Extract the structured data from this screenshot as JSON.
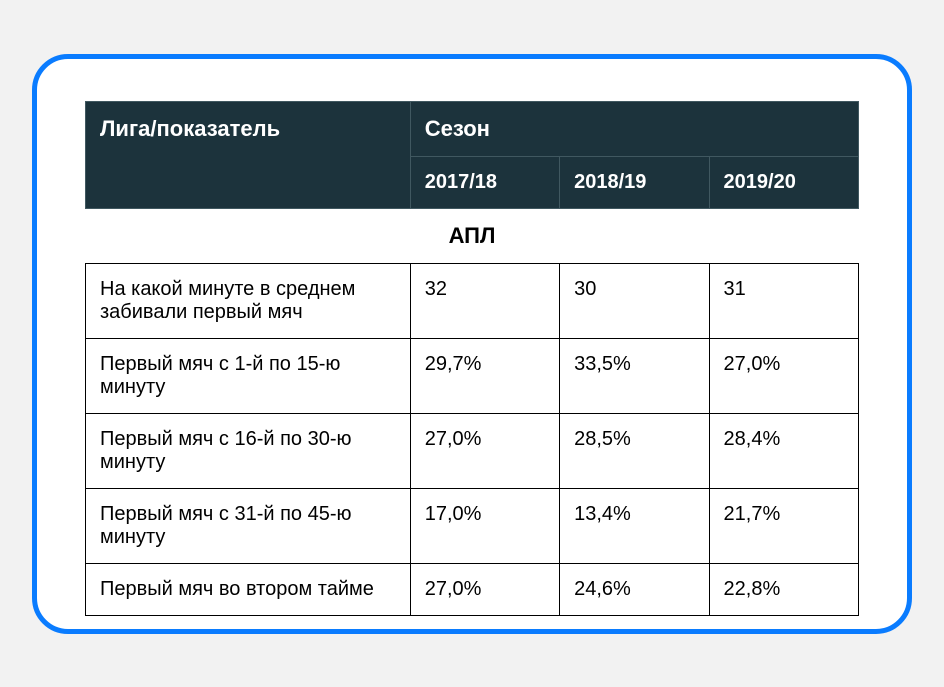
{
  "table": {
    "header": {
      "metric_label": "Лига/показатель",
      "season_label": "Сезон",
      "seasons": [
        "2017/18",
        "2018/19",
        "2019/20"
      ]
    },
    "section_label": "АПЛ",
    "rows": [
      {
        "metric": "На какой минуте в среднем забивали первый мяч",
        "values": [
          "32",
          "30",
          "31"
        ]
      },
      {
        "metric": "Первый мяч с 1-й по 15-ю минуту",
        "values": [
          "29,7%",
          "33,5%",
          "27,0%"
        ]
      },
      {
        "metric": "Первый мяч с 16-й по 30-ю минуту",
        "values": [
          "27,0%",
          "28,5%",
          "28,4%"
        ]
      },
      {
        "metric": "Первый мяч с 31-й по 45-ю минуту",
        "values": [
          "17,0%",
          "13,4%",
          "21,7%"
        ]
      },
      {
        "metric": "Первый мяч во втором тайме",
        "values": [
          "27,0%",
          "24,6%",
          "22,8%"
        ]
      }
    ],
    "colors": {
      "card_border": "#0a7cff",
      "header_bg": "#1c333c",
      "header_text": "#ffffff",
      "cell_border": "#000000",
      "body_bg": "#ffffff",
      "page_bg": "#f2f2f2"
    }
  }
}
